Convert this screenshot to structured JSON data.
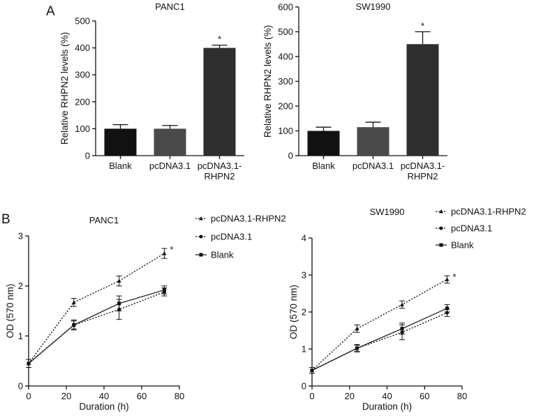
{
  "panel_labels": {
    "a": "A",
    "b": "B"
  },
  "chart_data": [
    {
      "type": "bar",
      "panel": "A",
      "title": "PANC1",
      "categories": [
        "Blank",
        "pcDNA3.1",
        "pcDNA3.1-RHPN2"
      ],
      "category_lines": [
        [
          "Blank"
        ],
        [
          "pcDNA3.1"
        ],
        [
          "pcDNA3.1-",
          "RHPN2"
        ]
      ],
      "values": [
        100,
        100,
        400
      ],
      "errors": [
        15,
        12,
        10
      ],
      "significance": [
        "",
        "",
        "*"
      ],
      "bar_colors": [
        "#111111",
        "#4a4a4a",
        "#2e2e2e"
      ],
      "xlabel": "",
      "ylabel": "Relative RHPN2 levels (%)",
      "ylim": [
        0,
        500
      ],
      "yticks": [
        0,
        100,
        200,
        300,
        400,
        500
      ],
      "grid": false
    },
    {
      "type": "bar",
      "panel": "A",
      "title": "SW1990",
      "categories": [
        "Blank",
        "pcDNA3.1",
        "pcDNA3.1-RHPN2"
      ],
      "category_lines": [
        [
          "Blank"
        ],
        [
          "pcDNA3.1"
        ],
        [
          "pcDNA3.1-",
          "RHPN2"
        ]
      ],
      "values": [
        100,
        115,
        450
      ],
      "errors": [
        15,
        20,
        50
      ],
      "significance": [
        "",
        "",
        "*"
      ],
      "bar_colors": [
        "#111111",
        "#4a4a4a",
        "#2e2e2e"
      ],
      "xlabel": "",
      "ylabel": "Relative RHPN2 levels (%)",
      "ylim": [
        0,
        600
      ],
      "yticks": [
        0,
        100,
        200,
        300,
        400,
        500,
        600
      ],
      "grid": false
    },
    {
      "type": "line",
      "panel": "B",
      "title": "PANC1",
      "x": [
        0,
        24,
        48,
        72
      ],
      "series": [
        {
          "name": "pcDNA3.1-RHPN2",
          "values": [
            0.45,
            1.67,
            2.1,
            2.65
          ],
          "errors": [
            0.08,
            0.08,
            0.1,
            0.1
          ],
          "marker": "triangle",
          "dash": "dotted"
        },
        {
          "name": "pcDNA3.1",
          "values": [
            0.45,
            1.22,
            1.53,
            1.88
          ],
          "errors": [
            0.08,
            0.08,
            0.2,
            0.08
          ],
          "marker": "circle",
          "dash": "dotted"
        },
        {
          "name": "Blank",
          "values": [
            0.45,
            1.22,
            1.65,
            1.92
          ],
          "errors": [
            0.08,
            0.1,
            0.15,
            0.08
          ],
          "marker": "square",
          "dash": "solid"
        }
      ],
      "significance_label": "*",
      "xlabel": "Duration (h)",
      "ylabel": "OD (570 nm)",
      "xlim": [
        0,
        80
      ],
      "xticks": [
        0,
        20,
        40,
        60,
        80
      ],
      "ylim": [
        0,
        3
      ],
      "yticks": [
        0,
        1,
        2,
        3
      ],
      "legend": "top-right",
      "grid": false
    },
    {
      "type": "line",
      "panel": "B",
      "title": "SW1990",
      "x": [
        0,
        24,
        48,
        72
      ],
      "series": [
        {
          "name": "pcDNA3.1-RHPN2",
          "values": [
            0.42,
            1.55,
            2.2,
            2.88
          ],
          "errors": [
            0.08,
            0.1,
            0.1,
            0.1
          ],
          "marker": "triangle",
          "dash": "dotted"
        },
        {
          "name": "pcDNA3.1",
          "values": [
            0.42,
            1.02,
            1.45,
            1.98
          ],
          "errors": [
            0.08,
            0.08,
            0.2,
            0.1
          ],
          "marker": "circle",
          "dash": "dotted"
        },
        {
          "name": "Blank",
          "values": [
            0.42,
            1.02,
            1.55,
            2.1
          ],
          "errors": [
            0.08,
            0.1,
            0.15,
            0.1
          ],
          "marker": "square",
          "dash": "solid"
        }
      ],
      "significance_label": "*",
      "xlabel": "Duration (h)",
      "ylabel": "OD (570 nm)",
      "xlim": [
        0,
        80
      ],
      "xticks": [
        0,
        20,
        40,
        60,
        80
      ],
      "ylim": [
        0,
        4
      ],
      "yticks": [
        0,
        1,
        2,
        3,
        4
      ],
      "legend": "top-right",
      "grid": false
    }
  ]
}
